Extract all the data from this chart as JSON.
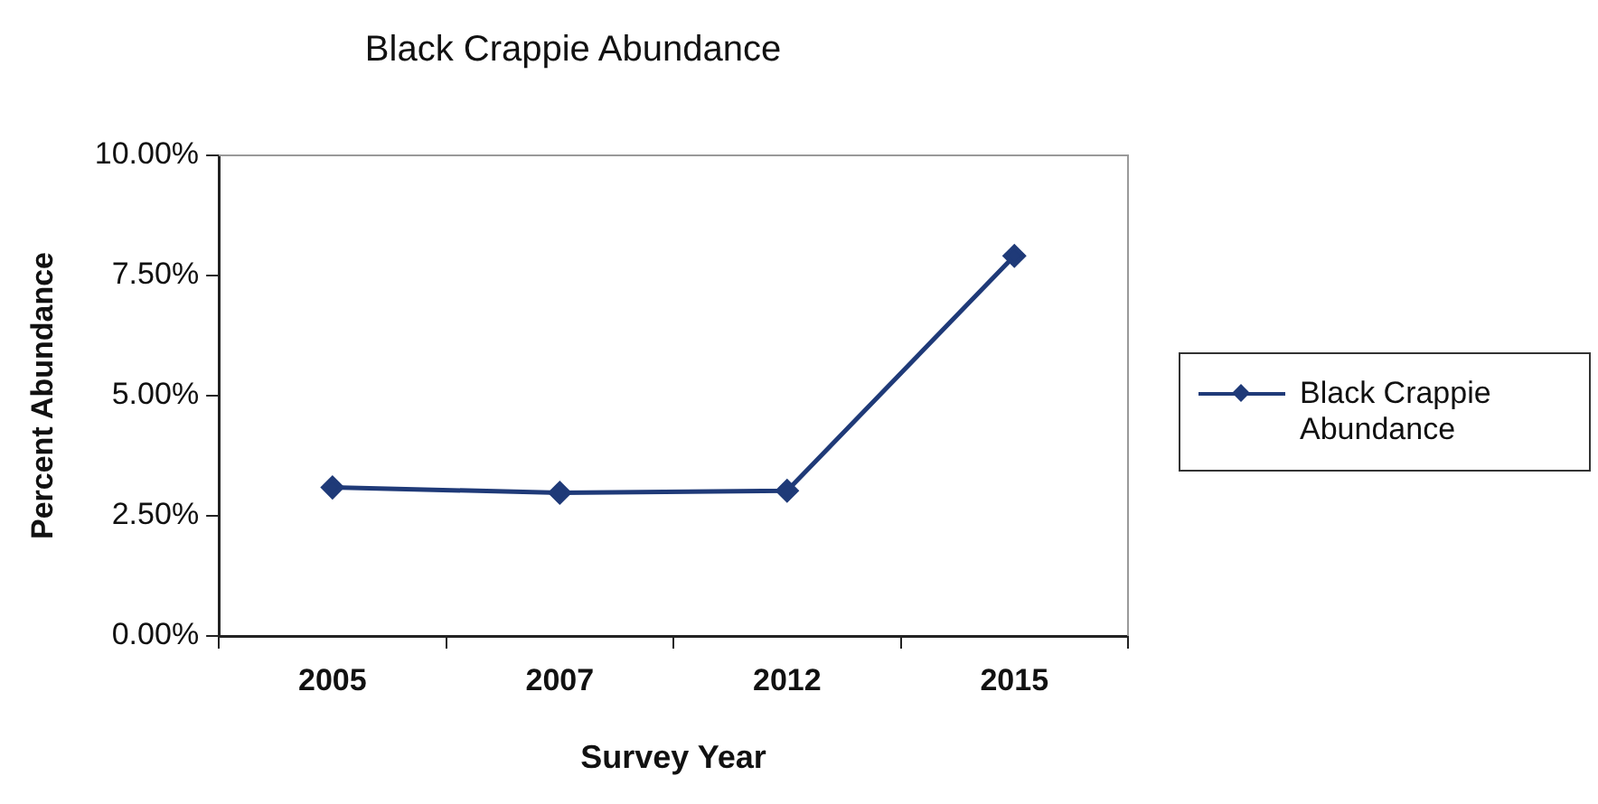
{
  "chart_data": {
    "type": "line",
    "title": "Black Crappie Abundance",
    "xlabel": "Survey Year",
    "ylabel": "Percent Abundance",
    "categories": [
      "2005",
      "2007",
      "2012",
      "2015"
    ],
    "series": [
      {
        "name": "Black Crappie Abundance",
        "color": "#1f3a78",
        "values": [
          3.09,
          2.98,
          3.02,
          7.91
        ]
      }
    ],
    "ylim": [
      0,
      10
    ],
    "yticks": [
      {
        "value": 0,
        "label": "0.00%"
      },
      {
        "value": 2.5,
        "label": "2.50%"
      },
      {
        "value": 5,
        "label": "5.00%"
      },
      {
        "value": 7.5,
        "label": "7.50%"
      },
      {
        "value": 10,
        "label": "10.00%"
      }
    ],
    "grid": false,
    "legend": "right",
    "marker": "diamond",
    "line_style": "solid"
  }
}
